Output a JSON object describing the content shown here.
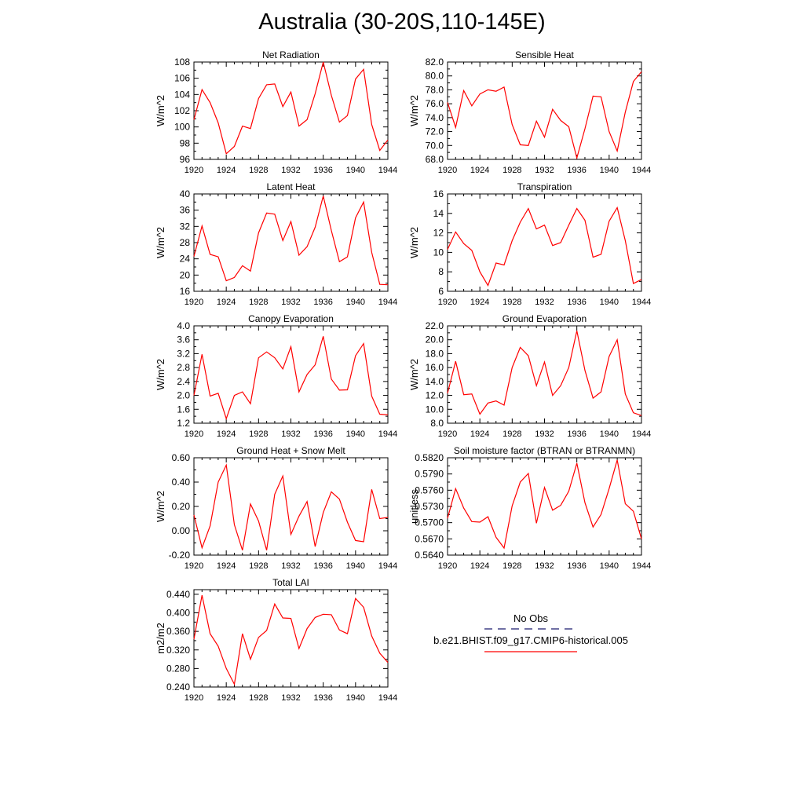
{
  "title": "Australia (30-20S,110-145E)",
  "chart_data": [
    {
      "type": "line",
      "title": "Net Radiation",
      "ylabel": "W/m^2",
      "xlim": [
        1920,
        1944
      ],
      "ylim": [
        96,
        108
      ],
      "xticks": [
        "1920",
        "1924",
        "1928",
        "1932",
        "1936",
        "1940",
        "1944"
      ],
      "yticks": [
        "96",
        "98",
        "100",
        "102",
        "104",
        "106",
        "108"
      ],
      "x": [
        1920,
        1921,
        1922,
        1923,
        1924,
        1925,
        1926,
        1927,
        1928,
        1929,
        1930,
        1931,
        1932,
        1933,
        1934,
        1935,
        1936,
        1937,
        1938,
        1939,
        1940,
        1941,
        1942,
        1943,
        1944
      ],
      "series": [
        {
          "values": [
            100.9,
            104.6,
            103.0,
            100.5,
            96.7,
            97.6,
            100.1,
            99.8,
            103.5,
            105.2,
            105.3,
            102.5,
            104.3,
            100.1,
            100.9,
            104.1,
            108.0,
            103.9,
            100.6,
            101.4,
            105.9,
            107.1,
            100.3,
            97.1,
            98.4
          ],
          "color": "#ff0000"
        }
      ]
    },
    {
      "type": "line",
      "title": "Sensible Heat",
      "ylabel": "W/m^2",
      "xlim": [
        1920,
        1944
      ],
      "ylim": [
        68,
        82
      ],
      "xticks": [
        "1920",
        "1924",
        "1928",
        "1932",
        "1936",
        "1940",
        "1944"
      ],
      "yticks": [
        "68.0",
        "70.0",
        "72.0",
        "74.0",
        "76.0",
        "78.0",
        "80.0",
        "82.0"
      ],
      "x": [
        1920,
        1921,
        1922,
        1923,
        1924,
        1925,
        1926,
        1927,
        1928,
        1929,
        1930,
        1931,
        1932,
        1933,
        1934,
        1935,
        1936,
        1937,
        1938,
        1939,
        1940,
        1941,
        1942,
        1943,
        1944
      ],
      "series": [
        {
          "values": [
            76.2,
            72.6,
            77.9,
            75.7,
            77.4,
            78.0,
            77.8,
            78.4,
            73.0,
            70.1,
            70.0,
            73.5,
            71.2,
            75.2,
            73.6,
            72.7,
            68.2,
            72.4,
            77.1,
            77.0,
            72.0,
            69.2,
            74.8,
            79.2,
            80.6
          ],
          "color": "#ff0000"
        }
      ]
    },
    {
      "type": "line",
      "title": "Latent Heat",
      "ylabel": "W/m^2",
      "xlim": [
        1920,
        1944
      ],
      "ylim": [
        16,
        40
      ],
      "xticks": [
        "1920",
        "1924",
        "1928",
        "1932",
        "1936",
        "1940",
        "1944"
      ],
      "yticks": [
        "16",
        "20",
        "24",
        "28",
        "32",
        "36",
        "40"
      ],
      "x": [
        1920,
        1921,
        1922,
        1923,
        1924,
        1925,
        1926,
        1927,
        1928,
        1929,
        1930,
        1931,
        1932,
        1933,
        1934,
        1935,
        1936,
        1937,
        1938,
        1939,
        1940,
        1941,
        1942,
        1943,
        1944
      ],
      "series": [
        {
          "values": [
            24.6,
            32.1,
            25.1,
            24.5,
            18.6,
            19.4,
            22.3,
            21.0,
            30.4,
            35.3,
            35.0,
            28.5,
            33.2,
            24.9,
            27.0,
            31.8,
            39.5,
            31.0,
            23.3,
            24.5,
            34.1,
            38.0,
            25.6,
            17.7,
            17.6
          ],
          "color": "#ff0000"
        }
      ]
    },
    {
      "type": "line",
      "title": "Transpiration",
      "ylabel": "W/m^2",
      "xlim": [
        1920,
        1944
      ],
      "ylim": [
        6,
        16
      ],
      "xticks": [
        "1920",
        "1924",
        "1928",
        "1932",
        "1936",
        "1940",
        "1944"
      ],
      "yticks": [
        "6",
        "8",
        "10",
        "12",
        "14",
        "16"
      ],
      "x": [
        1920,
        1921,
        1922,
        1923,
        1924,
        1925,
        1926,
        1927,
        1928,
        1929,
        1930,
        1931,
        1932,
        1933,
        1934,
        1935,
        1936,
        1937,
        1938,
        1939,
        1940,
        1941,
        1942,
        1943,
        1944
      ],
      "series": [
        {
          "values": [
            10.3,
            12.1,
            10.9,
            10.2,
            8.0,
            6.6,
            8.9,
            8.7,
            11.2,
            13.1,
            14.5,
            12.4,
            12.8,
            10.7,
            11.0,
            12.8,
            14.5,
            13.3,
            9.5,
            9.8,
            13.2,
            14.6,
            11.2,
            6.8,
            7.2
          ],
          "color": "#ff0000"
        }
      ]
    },
    {
      "type": "line",
      "title": "Canopy Evaporation",
      "ylabel": "W/m^2",
      "xlim": [
        1920,
        1944
      ],
      "ylim": [
        1.2,
        4.0
      ],
      "xticks": [
        "1920",
        "1924",
        "1928",
        "1932",
        "1936",
        "1940",
        "1944"
      ],
      "yticks": [
        "1.2",
        "1.6",
        "2.0",
        "2.4",
        "2.8",
        "3.2",
        "3.6",
        "4.0"
      ],
      "x": [
        1920,
        1921,
        1922,
        1923,
        1924,
        1925,
        1926,
        1927,
        1928,
        1929,
        1930,
        1931,
        1932,
        1933,
        1934,
        1935,
        1936,
        1937,
        1938,
        1939,
        1940,
        1941,
        1942,
        1943,
        1944
      ],
      "series": [
        {
          "values": [
            2.0,
            3.18,
            1.98,
            2.06,
            1.33,
            2.0,
            2.1,
            1.76,
            3.08,
            3.25,
            3.08,
            2.76,
            3.4,
            2.1,
            2.6,
            2.88,
            3.7,
            2.47,
            2.15,
            2.16,
            3.14,
            3.49,
            1.98,
            1.46,
            1.44
          ],
          "color": "#ff0000"
        }
      ]
    },
    {
      "type": "line",
      "title": "Ground Evaporation",
      "ylabel": "W/m^2",
      "xlim": [
        1920,
        1944
      ],
      "ylim": [
        8,
        22
      ],
      "xticks": [
        "1920",
        "1924",
        "1928",
        "1932",
        "1936",
        "1940",
        "1944"
      ],
      "yticks": [
        "8.0",
        "10.0",
        "12.0",
        "14.0",
        "16.0",
        "18.0",
        "20.0",
        "22.0"
      ],
      "x": [
        1920,
        1921,
        1922,
        1923,
        1924,
        1925,
        1926,
        1927,
        1928,
        1929,
        1930,
        1931,
        1932,
        1933,
        1934,
        1935,
        1936,
        1937,
        1938,
        1939,
        1940,
        1941,
        1942,
        1943,
        1944
      ],
      "series": [
        {
          "values": [
            12.3,
            16.9,
            12.1,
            12.2,
            9.3,
            10.9,
            11.2,
            10.6,
            16.0,
            18.9,
            17.7,
            13.4,
            16.8,
            12.0,
            13.4,
            16.0,
            21.3,
            15.6,
            11.6,
            12.5,
            17.6,
            20.0,
            12.2,
            9.5,
            9.1
          ],
          "color": "#ff0000"
        }
      ]
    },
    {
      "type": "line",
      "title": "Ground Heat + Snow Melt",
      "ylabel": "W/m^2",
      "xlim": [
        1920,
        1944
      ],
      "ylim": [
        -0.2,
        0.6
      ],
      "xticks": [
        "1920",
        "1924",
        "1928",
        "1932",
        "1936",
        "1940",
        "1944"
      ],
      "yticks": [
        "-0.20",
        "0.00",
        "0.20",
        "0.40",
        "0.60"
      ],
      "x": [
        1920,
        1921,
        1922,
        1923,
        1924,
        1925,
        1926,
        1927,
        1928,
        1929,
        1930,
        1931,
        1932,
        1933,
        1934,
        1935,
        1936,
        1937,
        1938,
        1939,
        1940,
        1941,
        1942,
        1943,
        1944
      ],
      "series": [
        {
          "values": [
            0.13,
            -0.14,
            0.04,
            0.4,
            0.54,
            0.05,
            -0.16,
            0.22,
            0.08,
            -0.16,
            0.3,
            0.45,
            -0.03,
            0.12,
            0.24,
            -0.13,
            0.15,
            0.32,
            0.26,
            0.07,
            -0.08,
            -0.09,
            0.34,
            0.1,
            0.11
          ],
          "color": "#ff0000"
        }
      ]
    },
    {
      "type": "line",
      "title": "Soil moisture factor (BTRAN or BTRANMN)",
      "ylabel": "unitless",
      "xlim": [
        1920,
        1944
      ],
      "ylim": [
        0.564,
        0.582
      ],
      "xticks": [
        "1920",
        "1924",
        "1928",
        "1932",
        "1936",
        "1940",
        "1944"
      ],
      "yticks": [
        "0.5640",
        "0.5670",
        "0.5700",
        "0.5730",
        "0.5760",
        "0.5790",
        "0.5820"
      ],
      "x": [
        1920,
        1921,
        1922,
        1923,
        1924,
        1925,
        1926,
        1927,
        1928,
        1929,
        1930,
        1931,
        1932,
        1933,
        1934,
        1935,
        1936,
        1937,
        1938,
        1939,
        1940,
        1941,
        1942,
        1943,
        1944
      ],
      "series": [
        {
          "values": [
            0.5708,
            0.5763,
            0.5727,
            0.5702,
            0.5701,
            0.5711,
            0.5673,
            0.5653,
            0.5731,
            0.5775,
            0.5791,
            0.5699,
            0.5765,
            0.5723,
            0.5732,
            0.5758,
            0.581,
            0.5737,
            0.5692,
            0.5715,
            0.5763,
            0.5816,
            0.5735,
            0.5721,
            0.567
          ],
          "color": "#ff0000"
        }
      ]
    },
    {
      "type": "line",
      "title": "Total LAI",
      "ylabel": "m2/m2",
      "xlim": [
        1920,
        1944
      ],
      "ylim": [
        0.24,
        0.45
      ],
      "xticks": [
        "1920",
        "1924",
        "1928",
        "1932",
        "1936",
        "1940",
        "1944"
      ],
      "yticks": [
        "0.240",
        "0.280",
        "0.320",
        "0.360",
        "0.400",
        "0.440"
      ],
      "x": [
        1920,
        1921,
        1922,
        1923,
        1924,
        1925,
        1926,
        1927,
        1928,
        1929,
        1930,
        1931,
        1932,
        1933,
        1934,
        1935,
        1936,
        1937,
        1938,
        1939,
        1940,
        1941,
        1942,
        1943,
        1944
      ],
      "series": [
        {
          "values": [
            0.343,
            0.438,
            0.355,
            0.328,
            0.28,
            0.246,
            0.355,
            0.3,
            0.347,
            0.362,
            0.419,
            0.389,
            0.388,
            0.323,
            0.366,
            0.39,
            0.397,
            0.396,
            0.363,
            0.355,
            0.431,
            0.412,
            0.35,
            0.313,
            0.293
          ],
          "color": "#ff0000"
        }
      ]
    }
  ],
  "legend": [
    {
      "label": "No Obs",
      "color": "#1a1a6e",
      "style": "dashed"
    },
    {
      "label": "b.e21.BHIST.f09_g17.CMIP6-historical.005",
      "color": "#ff0000",
      "style": "solid"
    }
  ]
}
